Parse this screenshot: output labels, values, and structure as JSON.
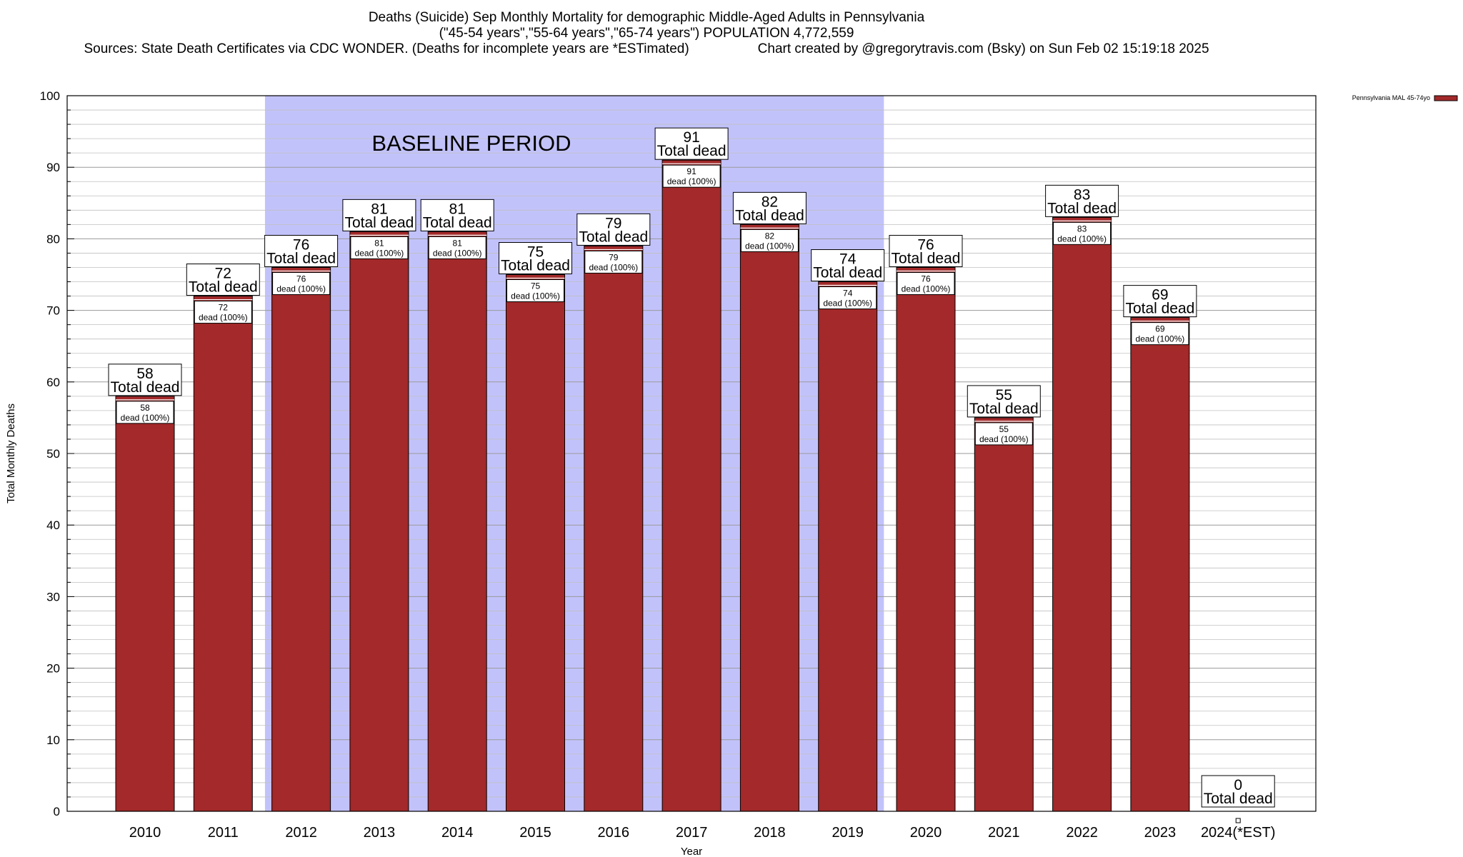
{
  "header": {
    "title_line1": "Deaths (Suicide) Sep Monthly Mortality for demographic Middle-Aged Adults in Pennsylvania",
    "title_line2": "(\"45-54 years\",\"55-64 years\",\"65-74 years\") POPULATION 4,772,559",
    "sources": "Sources: State Death Certificates via CDC WONDER. (Deaths for incomplete years are *ESTimated)",
    "credit": "Chart created by @gregorytravis.com (Bsky) on Sun Feb 02 15:19:18 2025"
  },
  "colors": {
    "bar": "#a3292a",
    "baseline_band": "#c2c2fb",
    "grid": "#c0c0c0"
  },
  "chart_data": {
    "type": "bar",
    "xlabel": "Year",
    "ylabel": "Total Monthly Deaths",
    "ylim": [
      0,
      100
    ],
    "yticks": [
      0,
      10,
      20,
      30,
      40,
      50,
      60,
      70,
      80,
      90,
      100
    ],
    "grid": "horizontal, minor every 2",
    "categories": [
      "2010",
      "2011",
      "2012",
      "2013",
      "2014",
      "2015",
      "2016",
      "2017",
      "2018",
      "2019",
      "2020",
      "2021",
      "2022",
      "2023",
      "2024(*EST)"
    ],
    "series": [
      {
        "name": "Pennsylvania MAL 45-74yo",
        "values": [
          58,
          72,
          76,
          81,
          81,
          75,
          79,
          91,
          82,
          74,
          76,
          55,
          83,
          69,
          0
        ]
      }
    ],
    "total_label": "Total dead",
    "inner_label": "dead (100%)",
    "baseline": {
      "label": "BASELINE PERIOD",
      "from": "2012",
      "to": "2019"
    },
    "legend": {
      "position": "top-right",
      "entry": "Pennsylvania MAL 45-74yo"
    }
  }
}
